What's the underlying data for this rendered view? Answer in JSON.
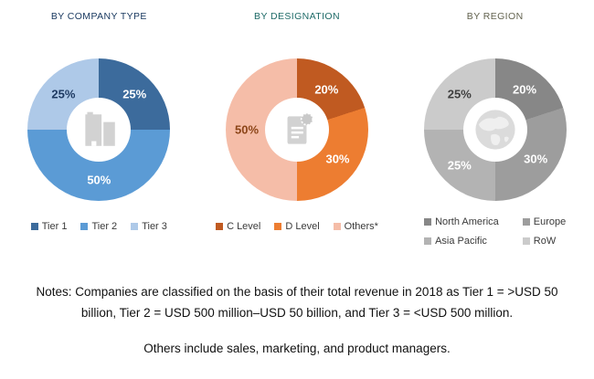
{
  "chart_data": [
    {
      "type": "pie",
      "subtype": "donut",
      "title": "BY COMPANY TYPE",
      "title_color": "#17375E",
      "icon": "building-icon",
      "categories": [
        "Tier 1",
        "Tier 2",
        "Tier 3"
      ],
      "values": [
        25,
        50,
        25
      ],
      "data_labels": [
        "25%",
        "50%",
        "25%"
      ],
      "colors": [
        "#3C6B9C",
        "#5B9BD5",
        "#AEC9E8"
      ],
      "label_colors": [
        "#FFFFFF",
        "#FFFFFF",
        "#1F3B63"
      ],
      "start_angle_deg": 0,
      "legend_position": "bottom",
      "legend_columns": 3
    },
    {
      "type": "pie",
      "subtype": "donut",
      "title": "BY DESIGNATION",
      "title_color": "#1F6B68",
      "icon": "document-icon",
      "categories": [
        "C Level",
        "D Level",
        "Others*"
      ],
      "values": [
        20,
        30,
        50
      ],
      "data_labels": [
        "20%",
        "30%",
        "50%"
      ],
      "colors": [
        "#C05A21",
        "#ED7D31",
        "#F5BDA8"
      ],
      "label_colors": [
        "#FFFFFF",
        "#FFFFFF",
        "#8C4518"
      ],
      "start_angle_deg": 0,
      "legend_position": "bottom",
      "legend_columns": 3
    },
    {
      "type": "pie",
      "subtype": "donut",
      "title": "BY REGION",
      "title_color": "#63634F",
      "icon": "globe-icon",
      "categories": [
        "North America",
        "Europe",
        "Asia Pacific",
        "RoW"
      ],
      "values": [
        20,
        30,
        25,
        25
      ],
      "data_labels": [
        "20%",
        "30%",
        "25%",
        "25%"
      ],
      "colors": [
        "#878787",
        "#9D9D9D",
        "#B3B3B3",
        "#CBCBCB"
      ],
      "label_colors": [
        "#FFFFFF",
        "#FFFFFF",
        "#FFFFFF",
        "#3F3F3F"
      ],
      "start_angle_deg": 0,
      "legend_position": "bottom",
      "legend_columns": 2
    }
  ],
  "notes": {
    "note1": "Notes: Companies are classified on the basis of their total revenue in 2018 as Tier 1 = >USD 50 billion, Tier 2 = USD 500 million–USD 50 billion, and Tier 3 = <USD 500 million.",
    "note2": "Others include sales, marketing, and product managers."
  }
}
